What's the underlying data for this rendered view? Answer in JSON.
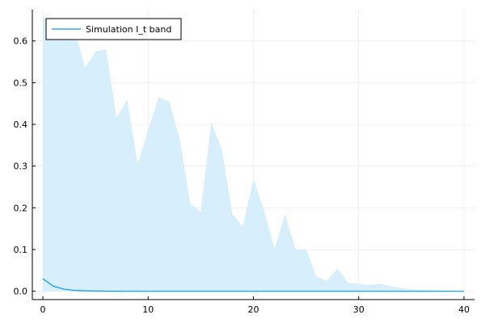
{
  "chart_data": {
    "type": "area",
    "title": "",
    "xlabel": "",
    "ylabel": "",
    "xlim": [
      -1,
      41
    ],
    "ylim": [
      -0.02,
      0.675
    ],
    "xticks": [
      0,
      10,
      20,
      30,
      40
    ],
    "xtick_labels": [
      "0",
      "10",
      "20",
      "30",
      "40"
    ],
    "yticks": [
      0.0,
      0.1,
      0.2,
      0.3,
      0.4,
      0.5,
      0.6
    ],
    "ytick_labels": [
      "0.0",
      "0.1",
      "0.2",
      "0.3",
      "0.4",
      "0.5",
      "0.6"
    ],
    "grid": true,
    "legend_position": "top-left",
    "series": [
      {
        "name": "Simulation I_t band",
        "color": "#009AFA",
        "band_fill": "#D7EEFC",
        "x": [
          0,
          1,
          2,
          3,
          4,
          5,
          6,
          7,
          8,
          9,
          10,
          11,
          12,
          13,
          14,
          15,
          16,
          17,
          18,
          19,
          20,
          21,
          22,
          23,
          24,
          25,
          26,
          27,
          28,
          29,
          30,
          31,
          32,
          33,
          34,
          35,
          36,
          37,
          38,
          39,
          40
        ],
        "upper": [
          0.66,
          0.63,
          0.6,
          0.63,
          0.535,
          0.575,
          0.58,
          0.415,
          0.46,
          0.305,
          0.385,
          0.465,
          0.455,
          0.365,
          0.21,
          0.19,
          0.405,
          0.34,
          0.185,
          0.155,
          0.27,
          0.195,
          0.1,
          0.185,
          0.1,
          0.1,
          0.035,
          0.025,
          0.055,
          0.02,
          0.018,
          0.015,
          0.018,
          0.012,
          0.008,
          0.005,
          0.004,
          0.003,
          0.002,
          0.001,
          0.001
        ],
        "lower": [
          0,
          0,
          0,
          0,
          0,
          0,
          0,
          0,
          0,
          0,
          0,
          0,
          0,
          0,
          0,
          0,
          0,
          0,
          0,
          0,
          0,
          0,
          0,
          0,
          0,
          0,
          0,
          0,
          0,
          0,
          0,
          0,
          0,
          0,
          0,
          0,
          0,
          0,
          0,
          0,
          0
        ],
        "mean": [
          0.03,
          0.012,
          0.005,
          0.002,
          0.001,
          0.0005,
          0.0002,
          0.0001,
          0,
          0,
          0,
          0,
          0,
          0,
          0,
          0,
          0,
          0,
          0,
          0,
          0,
          0,
          0,
          0,
          0,
          0,
          0,
          0,
          0,
          0,
          0,
          0,
          0,
          0,
          0,
          0,
          0,
          0,
          0,
          0,
          0
        ]
      }
    ]
  }
}
